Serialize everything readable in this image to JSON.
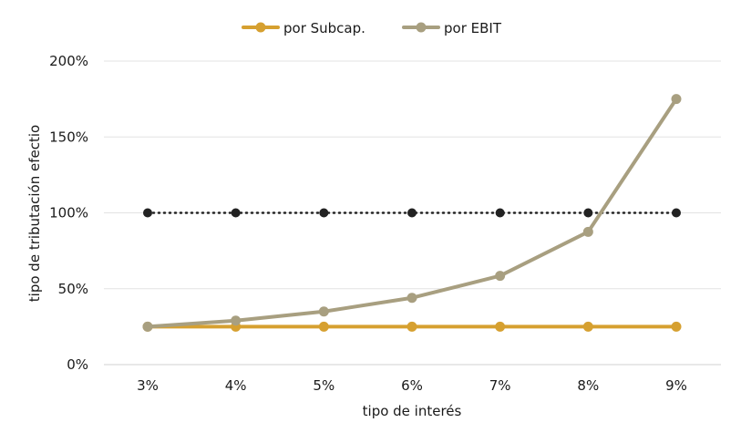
{
  "chart_data": {
    "type": "line",
    "x": [
      "3%",
      "4%",
      "5%",
      "6%",
      "7%",
      "8%",
      "9%"
    ],
    "xlabel": "tipo de interés",
    "ylabel": "tipo de tributación efectio",
    "yticks": [
      "0%",
      "50%",
      "100%",
      "150%",
      "200%"
    ],
    "ylim": [
      0,
      200
    ],
    "grid": true,
    "legend_position": "top",
    "series": [
      {
        "name": "por Subcap.",
        "color": "#D6A030",
        "values": [
          25,
          25,
          25,
          25,
          25,
          25,
          25
        ]
      },
      {
        "name": "por EBIT",
        "color": "#A89F80",
        "values": [
          25,
          29,
          35,
          44,
          58.5,
          87.5,
          175
        ]
      },
      {
        "color": "#222222",
        "dotted": true,
        "values": [
          100,
          100,
          100,
          100,
          100,
          100,
          100
        ]
      }
    ]
  }
}
